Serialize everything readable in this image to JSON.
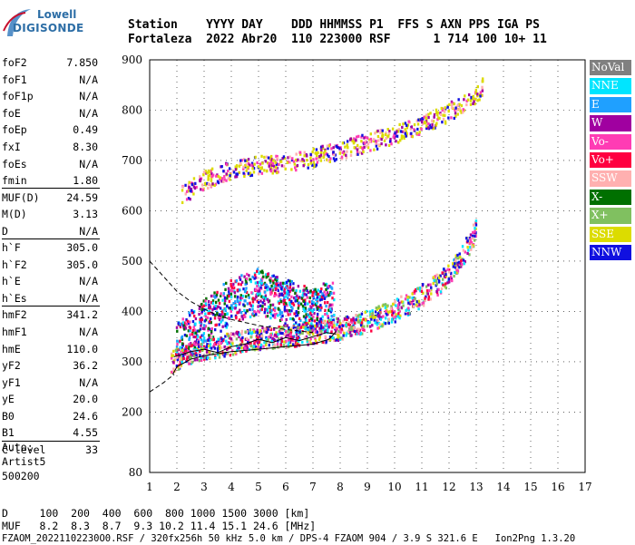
{
  "logo": {
    "line1": "Lowell",
    "line2": "DIGISONDE"
  },
  "header": {
    "labels": "Station    YYYY DAY    DDD HHMMSS P1  FFS S AXN PPS IGA PS",
    "values": "Fortaleza  2022 Abr20  110 223000 RSF      1 714 100 10+ 11"
  },
  "params": [
    {
      "name": "foF2",
      "value": "7.850"
    },
    {
      "name": "foF1",
      "value": "N/A"
    },
    {
      "name": "foF1p",
      "value": "N/A"
    },
    {
      "name": "foE",
      "value": "N/A"
    },
    {
      "name": "foEp",
      "value": "0.49"
    },
    {
      "name": "fxI",
      "value": "8.30"
    },
    {
      "name": "foEs",
      "value": "N/A"
    },
    {
      "name": "fmin",
      "value": "1.80"
    },
    {
      "name": "MUF(D)",
      "value": "24.59"
    },
    {
      "name": "M(D)",
      "value": "3.13"
    },
    {
      "name": "D",
      "value": "N/A"
    },
    {
      "name": "h`F",
      "value": "305.0"
    },
    {
      "name": "h`F2",
      "value": "305.0"
    },
    {
      "name": "h`E",
      "value": "N/A"
    },
    {
      "name": "h`Es",
      "value": "N/A"
    },
    {
      "name": "hmF2",
      "value": "341.2"
    },
    {
      "name": "hmF1",
      "value": "N/A"
    },
    {
      "name": "hmE",
      "value": "110.0"
    },
    {
      "name": "yF2",
      "value": "36.2"
    },
    {
      "name": "yF1",
      "value": "N/A"
    },
    {
      "name": "yE",
      "value": "20.0"
    },
    {
      "name": "B0",
      "value": "24.6"
    },
    {
      "name": "B1",
      "value": "4.55"
    },
    {
      "name": "C-level",
      "value": "33"
    }
  ],
  "auto": {
    "line1": "Auto:",
    "line2": "Artist5",
    "line3": "500200"
  },
  "legend": [
    {
      "label": "NoVal",
      "color": "#808080"
    },
    {
      "label": "NNE",
      "color": "#00e5ff"
    },
    {
      "label": "E",
      "color": "#1fa0ff"
    },
    {
      "label": "W",
      "color": "#a000a0"
    },
    {
      "label": "Vo-",
      "color": "#ff3cb4"
    },
    {
      "label": "Vo+",
      "color": "#ff0040"
    },
    {
      "label": "SSW",
      "color": "#ffb0b0"
    },
    {
      "label": "X-",
      "color": "#007000"
    },
    {
      "label": "X+",
      "color": "#80c060"
    },
    {
      "label": "SSE",
      "color": "#dcdc00"
    },
    {
      "label": "NNW",
      "color": "#1010e0"
    }
  ],
  "footer": {
    "d_line": "D     100  200  400  600  800 1000 1500 3000 [km]",
    "muf_line": "MUF   8.2  8.3  8.7  9.3 10.2 11.4 15.1 24.6 [MHz]",
    "file_line": "FZAOM_20221102230O0.RSF / 320fx256h 50 kHz 5.0 km / DPS-4 FZAOM 904 / 3.9 S 321.6 E   Ion2Png 1.3.20"
  },
  "chart_data": {
    "type": "scatter",
    "xlim": [
      1,
      17
    ],
    "ylim": [
      80,
      900
    ],
    "x_ticks": [
      1,
      2,
      3,
      4,
      5,
      6,
      7,
      8,
      9,
      10,
      11,
      12,
      13,
      14,
      15,
      16,
      17
    ],
    "y_ticks": [
      80,
      200,
      300,
      400,
      500,
      600,
      700,
      800,
      900
    ],
    "grid": true,
    "series": [
      {
        "name": "NNE",
        "color": "#00e5ff"
      },
      {
        "name": "E",
        "color": "#1fa0ff"
      },
      {
        "name": "W",
        "color": "#a000a0"
      },
      {
        "name": "Vo-",
        "color": "#ff3cb4"
      },
      {
        "name": "Vo+",
        "color": "#ff0040"
      },
      {
        "name": "SSW",
        "color": "#ffb0b0"
      },
      {
        "name": "X-",
        "color": "#007000"
      },
      {
        "name": "X+",
        "color": "#80c060"
      },
      {
        "name": "SSE",
        "color": "#dcdc00"
      },
      {
        "name": "NNW",
        "color": "#1010e0"
      }
    ],
    "traces": [
      {
        "name": "o-trace F2",
        "points": [
          [
            1.8,
            300
          ],
          [
            2.5,
            315
          ],
          [
            3,
            325
          ],
          [
            4,
            335
          ],
          [
            5,
            345
          ],
          [
            6,
            350
          ],
          [
            7,
            356
          ],
          [
            8,
            365
          ],
          [
            9,
            380
          ],
          [
            10,
            400
          ],
          [
            11,
            430
          ],
          [
            12,
            470
          ],
          [
            12.5,
            510
          ],
          [
            13,
            560
          ]
        ]
      },
      {
        "name": "x-trace F2",
        "points": [
          [
            2.2,
            630
          ],
          [
            3,
            660
          ],
          [
            4,
            680
          ],
          [
            5,
            690
          ],
          [
            6,
            695
          ],
          [
            7,
            705
          ],
          [
            8,
            720
          ],
          [
            9,
            735
          ],
          [
            10,
            750
          ],
          [
            11,
            770
          ],
          [
            12,
            795
          ],
          [
            13,
            830
          ],
          [
            13.3,
            850
          ]
        ]
      },
      {
        "name": "spread F",
        "points": [
          [
            2,
            330
          ],
          [
            3,
            380
          ],
          [
            4,
            420
          ],
          [
            5,
            440
          ],
          [
            6,
            420
          ],
          [
            7,
            400
          ],
          [
            7.8,
            420
          ]
        ]
      }
    ],
    "profile_solid": [
      [
        1.85,
        275
      ],
      [
        2,
        290
      ],
      [
        2.5,
        305
      ],
      [
        3,
        312
      ],
      [
        4,
        320
      ],
      [
        5,
        325
      ],
      [
        6,
        330
      ],
      [
        7,
        335
      ],
      [
        7.6,
        345
      ],
      [
        7.85,
        360
      ]
    ],
    "profile_upper": [
      [
        1.9,
        310
      ],
      [
        2.5,
        320
      ],
      [
        3,
        325
      ],
      [
        3.5,
        318
      ],
      [
        4,
        330
      ],
      [
        4.5,
        335
      ],
      [
        5,
        345
      ],
      [
        5.5,
        338
      ],
      [
        6,
        348
      ],
      [
        6.5,
        342
      ],
      [
        7,
        350
      ],
      [
        7.5,
        358
      ],
      [
        7.85,
        355
      ]
    ],
    "profile_dashed": [
      [
        1,
        500
      ],
      [
        1.5,
        470
      ],
      [
        2,
        440
      ],
      [
        2.5,
        420
      ],
      [
        3,
        405
      ],
      [
        3.5,
        392
      ],
      [
        4,
        384
      ],
      [
        4.5,
        378
      ],
      [
        5,
        372
      ],
      [
        5.5,
        368
      ],
      [
        6,
        364
      ],
      [
        7,
        358
      ]
    ],
    "profile_lower_dashed": [
      [
        1,
        240
      ],
      [
        1.5,
        258
      ],
      [
        1.9,
        275
      ]
    ]
  }
}
